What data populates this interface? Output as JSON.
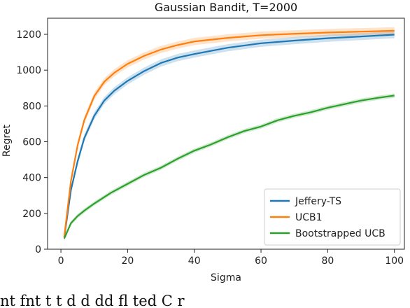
{
  "chart_data": {
    "type": "line",
    "title": "Gaussian Bandit, T=2000",
    "xlabel": "Sigma",
    "ylabel": "Regret",
    "xlim": [
      -4,
      103
    ],
    "ylim": [
      0,
      1290
    ],
    "xticks": [
      0,
      20,
      40,
      60,
      80,
      100
    ],
    "yticks": [
      0,
      200,
      400,
      600,
      800,
      1000,
      1200
    ],
    "grid": false,
    "legend_position": "lower-right",
    "colors": {
      "Jeffery-TS": "#1f77b4",
      "UCB1": "#ff7f0e",
      "Bootstrapped UCB": "#2ca02c"
    },
    "series": [
      {
        "name": "Jeffery-TS",
        "x": [
          1,
          3,
          5,
          7,
          10,
          13,
          16,
          20,
          25,
          30,
          35,
          40,
          50,
          60,
          70,
          80,
          90,
          100
        ],
        "values": [
          65,
          330,
          490,
          620,
          745,
          830,
          885,
          940,
          995,
          1040,
          1070,
          1090,
          1125,
          1150,
          1165,
          1178,
          1188,
          1198
        ],
        "band": 20
      },
      {
        "name": "UCB1",
        "x": [
          1,
          3,
          5,
          7,
          10,
          13,
          16,
          20,
          25,
          30,
          35,
          40,
          50,
          60,
          70,
          80,
          90,
          100
        ],
        "values": [
          70,
          380,
          580,
          720,
          855,
          935,
          985,
          1035,
          1080,
          1115,
          1140,
          1160,
          1180,
          1195,
          1203,
          1210,
          1215,
          1220
        ],
        "band": 20
      },
      {
        "name": "Bootstrapped UCB",
        "x": [
          1,
          3,
          5,
          7,
          10,
          15,
          20,
          25,
          30,
          35,
          40,
          45,
          50,
          55,
          60,
          65,
          70,
          75,
          80,
          85,
          90,
          95,
          100
        ],
        "values": [
          60,
          145,
          185,
          215,
          255,
          315,
          365,
          415,
          455,
          505,
          550,
          585,
          625,
          660,
          685,
          720,
          745,
          765,
          790,
          810,
          830,
          845,
          858
        ],
        "band": 12
      }
    ]
  },
  "caption": {
    "text": "nt  fnt  t  t  d  d  dd  fl  ted  C  r"
  }
}
